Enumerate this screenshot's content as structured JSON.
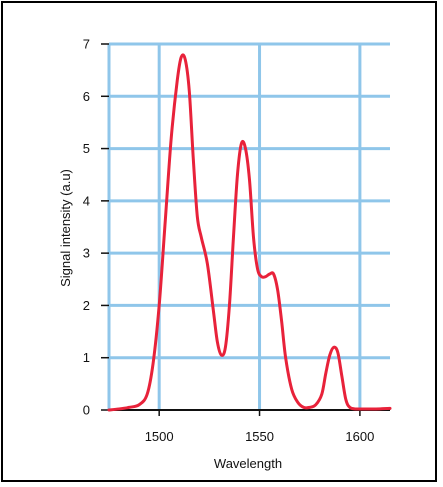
{
  "chart_data": {
    "type": "line",
    "title": "",
    "xlabel": "Wavelength",
    "ylabel": "Signal intensity (a.u)",
    "xlim": [
      1475,
      1615
    ],
    "ylim": [
      0,
      7
    ],
    "xticks": [
      1500,
      1550,
      1600
    ],
    "yticks": [
      0,
      1,
      2,
      3,
      4,
      5,
      6,
      7
    ],
    "grid": true,
    "colors": {
      "line": "#e8223a",
      "grid": "#8fc6ea",
      "axis": "#111111"
    },
    "series": [
      {
        "x": [
          1475,
          1480,
          1485,
          1490,
          1494,
          1497,
          1500,
          1503,
          1506,
          1509,
          1511,
          1513,
          1515,
          1517,
          1519,
          1521,
          1524,
          1527,
          1529,
          1531,
          1533,
          1535,
          1537,
          1539,
          1541,
          1543,
          1545,
          1547,
          1549,
          1551,
          1553,
          1555,
          1557,
          1559,
          1561,
          1563,
          1566,
          1569,
          1572,
          1575,
          1578,
          1581,
          1583,
          1585,
          1587,
          1589,
          1591,
          1593,
          1595,
          1598,
          1602,
          1608,
          1615
        ],
        "y": [
          0,
          0.02,
          0.05,
          0.1,
          0.3,
          0.9,
          2.0,
          3.6,
          5.2,
          6.3,
          6.75,
          6.7,
          6.1,
          4.8,
          3.7,
          3.3,
          2.8,
          1.9,
          1.3,
          1.05,
          1.2,
          2.0,
          3.3,
          4.5,
          5.1,
          5.0,
          4.4,
          3.3,
          2.7,
          2.55,
          2.55,
          2.6,
          2.6,
          2.3,
          1.7,
          1.0,
          0.4,
          0.15,
          0.05,
          0.05,
          0.1,
          0.3,
          0.7,
          1.05,
          1.2,
          1.1,
          0.65,
          0.2,
          0.05,
          0.02,
          0.02,
          0.02,
          0.03
        ]
      }
    ]
  }
}
